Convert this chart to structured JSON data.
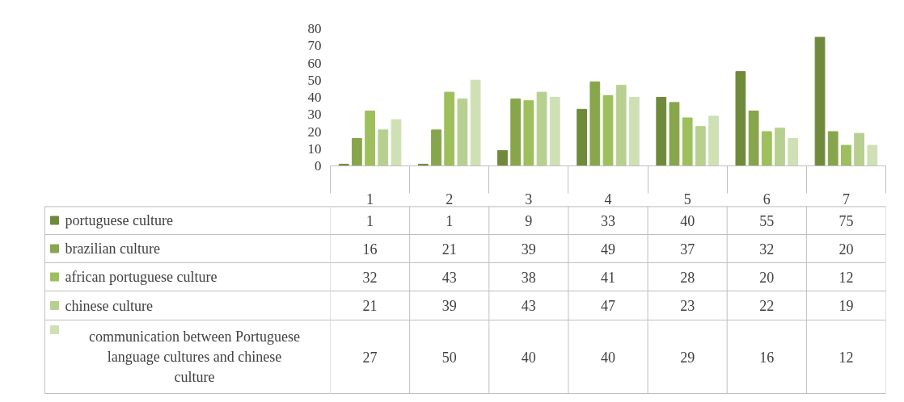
{
  "chart_data": {
    "type": "bar",
    "categories": [
      "1",
      "2",
      "3",
      "4",
      "5",
      "6",
      "7"
    ],
    "series": [
      {
        "name": "portuguese culture",
        "color": "#6f8a3b",
        "values": [
          1,
          1,
          9,
          33,
          40,
          55,
          75
        ]
      },
      {
        "name": "brazilian culture",
        "color": "#87a64c",
        "values": [
          16,
          21,
          39,
          49,
          37,
          32,
          20
        ]
      },
      {
        "name": "african portuguese culture",
        "color": "#9dbf5c",
        "values": [
          32,
          43,
          38,
          41,
          28,
          20,
          12
        ]
      },
      {
        "name": "chinese culture",
        "color": "#b7d08f",
        "values": [
          21,
          39,
          43,
          47,
          23,
          22,
          19
        ]
      },
      {
        "name": "communication between Portuguese language cultures and chinese culture",
        "color": "#cfe0b5",
        "values": [
          27,
          50,
          40,
          40,
          29,
          16,
          12
        ]
      }
    ],
    "ylim": [
      0,
      80
    ],
    "yticks": [
      0,
      10,
      20,
      30,
      40,
      50,
      60,
      70,
      80
    ],
    "grid": false,
    "legend": "bottom",
    "data_labels": true
  }
}
